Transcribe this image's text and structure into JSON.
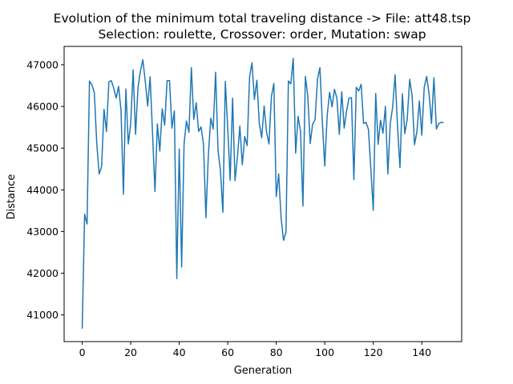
{
  "chart_data": {
    "type": "line",
    "title_line1": "Evolution of the minimum total traveling distance -> File: att48.tsp",
    "title_line2": "Selection: roulette, Crossover: order, Mutation: swap",
    "xlabel": "Generation",
    "ylabel": "Distance",
    "xlim": [
      -7.45,
      156.45
    ],
    "ylim": [
      40360,
      47440
    ],
    "xticks": [
      0,
      20,
      40,
      60,
      80,
      100,
      120,
      140
    ],
    "yticks": [
      41000,
      42000,
      43000,
      44000,
      45000,
      46000,
      47000
    ],
    "grid": false,
    "line_color": "#1f77b4",
    "series": [
      {
        "name": "",
        "x": [
          0,
          1,
          2,
          3,
          4,
          5,
          6,
          7,
          8,
          9,
          10,
          11,
          12,
          13,
          14,
          15,
          16,
          17,
          18,
          19,
          20,
          21,
          22,
          23,
          24,
          25,
          26,
          27,
          28,
          29,
          30,
          31,
          32,
          33,
          34,
          35,
          36,
          37,
          38,
          39,
          40,
          41,
          42,
          43,
          44,
          45,
          46,
          47,
          48,
          49,
          50,
          51,
          52,
          53,
          54,
          55,
          56,
          57,
          58,
          59,
          60,
          61,
          62,
          63,
          64,
          65,
          66,
          67,
          68,
          69,
          70,
          71,
          72,
          73,
          74,
          75,
          76,
          77,
          78,
          79,
          80,
          81,
          82,
          83,
          84,
          85,
          86,
          87,
          88,
          89,
          90,
          91,
          92,
          93,
          94,
          95,
          96,
          97,
          98,
          99,
          100,
          101,
          102,
          103,
          104,
          105,
          106,
          107,
          108,
          109,
          110,
          111,
          112,
          113,
          114,
          115,
          116,
          117,
          118,
          119,
          120,
          121,
          122,
          123,
          124,
          125,
          126,
          127,
          128,
          129,
          130,
          131,
          132,
          133,
          134,
          135,
          136,
          137,
          138,
          139,
          140,
          141,
          142,
          143,
          144,
          145,
          146,
          147,
          148,
          149
        ],
        "values": [
          40670,
          43420,
          43180,
          46610,
          46520,
          46330,
          45120,
          44380,
          44560,
          45930,
          45400,
          46590,
          46620,
          46440,
          46200,
          46480,
          45910,
          43890,
          46420,
          45100,
          45590,
          46880,
          45330,
          46450,
          46850,
          47120,
          46600,
          46010,
          46710,
          45350,
          43960,
          45580,
          44930,
          45940,
          45550,
          46620,
          46620,
          45480,
          45890,
          41870,
          44980,
          42150,
          45110,
          45650,
          45380,
          46930,
          45690,
          46090,
          45400,
          45510,
          45100,
          43330,
          44820,
          45720,
          45460,
          46820,
          44940,
          44460,
          43460,
          46600,
          45470,
          44230,
          46200,
          44220,
          44790,
          45530,
          44600,
          45280,
          45060,
          46710,
          47050,
          46170,
          46630,
          45600,
          45250,
          46010,
          45380,
          45100,
          46240,
          46550,
          43840,
          44380,
          43320,
          42790,
          42980,
          46610,
          46540,
          47150,
          44880,
          45760,
          45400,
          43610,
          46720,
          46250,
          45110,
          45580,
          45680,
          46650,
          46930,
          45620,
          44570,
          45790,
          46340,
          45990,
          46410,
          46200,
          45330,
          46350,
          45480,
          45900,
          46200,
          46210,
          44240,
          46460,
          46370,
          46530,
          45590,
          45620,
          45450,
          44490,
          43510,
          46310,
          45090,
          45670,
          45360,
          46000,
          44380,
          45590,
          45990,
          46760,
          45510,
          44530,
          46300,
          45350,
          45700,
          46650,
          46260,
          45080,
          45400,
          46130,
          45310,
          46460,
          46720,
          46300,
          45590,
          46690,
          45460,
          45590,
          45620,
          45610
        ]
      }
    ]
  }
}
